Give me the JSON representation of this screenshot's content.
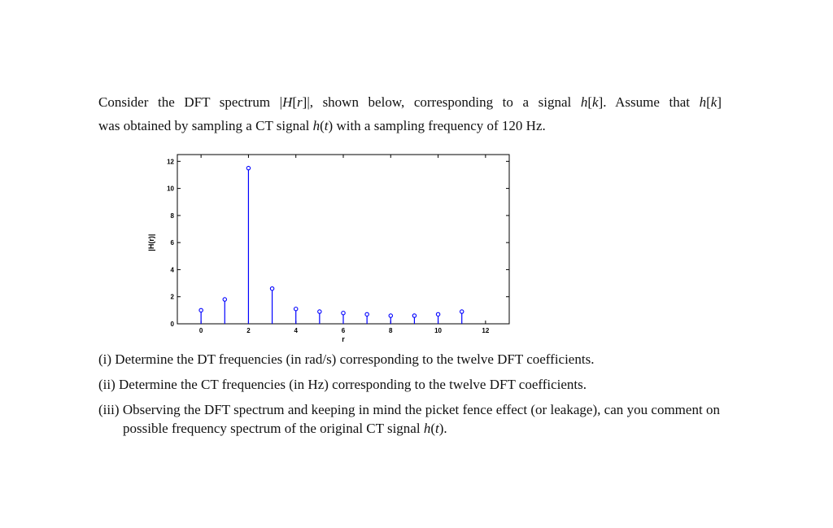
{
  "intro": {
    "t1": "Consider the DFT spectrum ",
    "m1": "H",
    "m2": "[",
    "m3": "r",
    "m4": "]",
    "t2": ", shown below, corresponding to a signal ",
    "m5": "h",
    "m6": "[",
    "m7": "k",
    "m8": "]",
    "t3": ". Assume that ",
    "m9": "h",
    "m10": "[",
    "m11": "k",
    "m12": "]",
    "t4": "was obtained by sampling a CT signal ",
    "m13": "h",
    "m14": "(",
    "m15": "t",
    "m16": ")",
    "t5": " with a sampling frequency of 120 Hz."
  },
  "chart_data": {
    "type": "stem",
    "xlabel": "r",
    "ylabel": "|H(r)|",
    "xlim": [
      -1,
      13
    ],
    "ylim": [
      0,
      12.5
    ],
    "xticks": [
      "0",
      "2",
      "4",
      "6",
      "8",
      "10",
      "12"
    ],
    "yticks": [
      "0",
      "2",
      "4",
      "6",
      "8",
      "10",
      "12"
    ],
    "x": [
      0,
      1,
      2,
      3,
      4,
      5,
      6,
      7,
      8,
      9,
      10,
      11
    ],
    "values": [
      1.0,
      1.8,
      11.5,
      2.6,
      1.1,
      0.9,
      0.8,
      0.7,
      0.6,
      0.6,
      0.7,
      0.9
    ],
    "color": "#0000ff"
  },
  "questions": {
    "q1": "(i) Determine the DT frequencies (in rad/s) corresponding to the twelve DFT coefficients.",
    "q2": "(ii) Determine the CT frequencies (in Hz) corresponding to the twelve DFT coefficients.",
    "q3a": "(iii) Observing the DFT spectrum and keeping in mind the picket fence effect (or leakage), can you comment on possible frequency spectrum of the original CT signal ",
    "q3m1": "h",
    "q3m2": "(",
    "q3m3": "t",
    "q3m4": ")",
    "q3b": "."
  }
}
